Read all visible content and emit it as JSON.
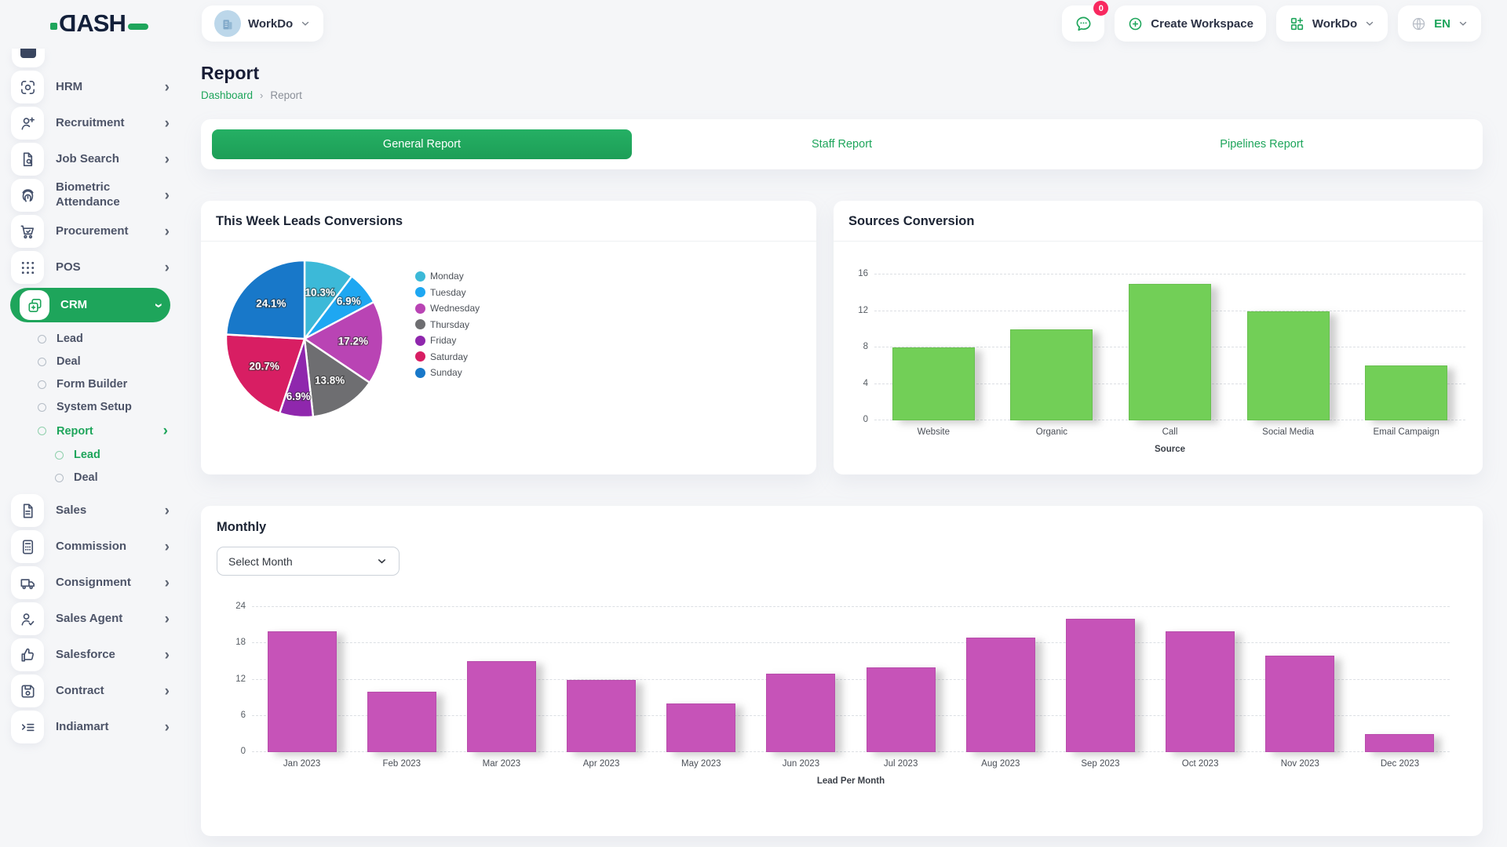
{
  "header": {
    "logo_text": "DASH",
    "workspace_selector_label": "WorkDo",
    "messages_badge": "0",
    "create_workspace_label": "Create Workspace",
    "workspace_menu_label": "WorkDo",
    "language": "EN"
  },
  "colors": {
    "brand_green": "#1ea55b",
    "badge_pink": "#f8285f",
    "sources_bar_green": "#72cf57",
    "monthly_bar_magenta": "#c653b8"
  },
  "sidebar": {
    "items": [
      {
        "label": "HRM",
        "icon": "hrm-icon",
        "level": 0,
        "chevron": true
      },
      {
        "label": "Recruitment",
        "icon": "recruitment-icon",
        "level": 0,
        "chevron": true
      },
      {
        "label": "Job Search",
        "icon": "job-search-icon",
        "level": 0,
        "chevron": true
      },
      {
        "label": "Biometric Attendance",
        "icon": "biometric-attendance-icon",
        "level": 0,
        "chevron": true
      },
      {
        "label": "Procurement",
        "icon": "procurement-icon",
        "level": 0,
        "chevron": true
      },
      {
        "label": "POS",
        "icon": "pos-icon",
        "level": 0,
        "chevron": true
      },
      {
        "label": "CRM",
        "icon": "crm-icon",
        "level": 0,
        "chevron": true,
        "active": true
      },
      {
        "label": "Lead",
        "level": 1
      },
      {
        "label": "Deal",
        "level": 1
      },
      {
        "label": "Form Builder",
        "level": 1
      },
      {
        "label": "System Setup",
        "level": 1
      },
      {
        "label": "Report",
        "level": 1,
        "active": true,
        "chevron": true
      },
      {
        "label": "Lead",
        "level": 2,
        "active": true
      },
      {
        "label": "Deal",
        "level": 2
      },
      {
        "label": "Sales",
        "icon": "sales-icon",
        "level": 0,
        "chevron": true
      },
      {
        "label": "Commission",
        "icon": "commission-icon",
        "level": 0,
        "chevron": true
      },
      {
        "label": "Consignment",
        "icon": "consignment-icon",
        "level": 0,
        "chevron": true
      },
      {
        "label": "Sales Agent",
        "icon": "sales-agent-icon",
        "level": 0,
        "chevron": true
      },
      {
        "label": "Salesforce",
        "icon": "salesforce-icon",
        "level": 0,
        "chevron": true
      },
      {
        "label": "Contract",
        "icon": "contract-icon",
        "level": 0,
        "chevron": true
      },
      {
        "label": "Indiamart",
        "icon": "indiamart-icon",
        "level": 0,
        "chevron": true
      }
    ]
  },
  "page": {
    "title": "Report",
    "breadcrumb": [
      "Dashboard",
      "Report"
    ]
  },
  "tabs": [
    {
      "label": "General Report",
      "active": true
    },
    {
      "label": "Staff Report",
      "active": false
    },
    {
      "label": "Pipelines Report",
      "active": false
    }
  ],
  "monthly": {
    "title": "Monthly",
    "select_value": "Select Month"
  },
  "chart_data": [
    {
      "id": "leads_pie",
      "type": "pie",
      "title": "This Week Leads Conversions",
      "labels": [
        "Monday",
        "Tuesday",
        "Wednesday",
        "Thursday",
        "Friday",
        "Saturday",
        "Sunday"
      ],
      "values": [
        10.3,
        6.9,
        17.2,
        13.8,
        6.9,
        20.7,
        24.1
      ],
      "value_suffix": "%",
      "colors": [
        "#3cb9d8",
        "#1ea7f2",
        "#b944b4",
        "#6e6e71",
        "#8f27ad",
        "#d81e63",
        "#1878c9"
      ],
      "legend_position": "right",
      "start_angle": "top",
      "direction": "clockwise"
    },
    {
      "id": "sources_bar",
      "type": "bar",
      "title": "Sources Conversion",
      "categories": [
        "Website",
        "Organic",
        "Call",
        "Social Media",
        "Email Campaign"
      ],
      "values": [
        8,
        10,
        15,
        12,
        6
      ],
      "xlabel": "Source",
      "ylim": [
        0,
        16
      ],
      "yticks": [
        0,
        4,
        8,
        12,
        16
      ],
      "bar_color": "#72cf57",
      "grid": "dashed"
    },
    {
      "id": "monthly_bar",
      "type": "bar",
      "title": "Monthly",
      "categories": [
        "Jan 2023",
        "Feb 2023",
        "Mar 2023",
        "Apr 2023",
        "May 2023",
        "Jun 2023",
        "Jul 2023",
        "Aug 2023",
        "Sep 2023",
        "Oct 2023",
        "Nov 2023",
        "Dec 2023"
      ],
      "values": [
        20,
        10,
        15,
        12,
        8,
        13,
        14,
        19,
        22,
        20,
        16,
        3
      ],
      "xlabel": "Lead Per Month",
      "ylim": [
        0,
        24
      ],
      "yticks": [
        0,
        6,
        12,
        18,
        24
      ],
      "bar_color": "#c653b8",
      "grid": "dashed"
    }
  ]
}
